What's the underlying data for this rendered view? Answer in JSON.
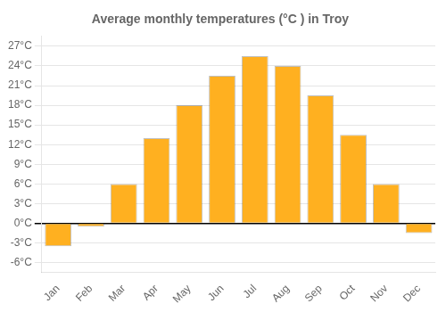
{
  "chart_data": {
    "type": "bar",
    "title": "Average monthly temperatures (°C ) in Troy",
    "categories": [
      "Jan",
      "Feb",
      "Mar",
      "Apr",
      "May",
      "Jun",
      "Jul",
      "Aug",
      "Sep",
      "Oct",
      "Nov",
      "Dec"
    ],
    "values": [
      -3.5,
      -0.5,
      6.0,
      13.0,
      18.0,
      22.5,
      25.5,
      24.0,
      19.5,
      13.5,
      6.0,
      -1.5
    ],
    "color": "#FFB020",
    "ylim": [
      -7.5,
      28.5
    ],
    "yticks": [
      {
        "value": -6,
        "label": "-6°C"
      },
      {
        "value": -3,
        "label": "-3°C"
      },
      {
        "value": 0,
        "label": "0°C"
      },
      {
        "value": 3,
        "label": "3°C"
      },
      {
        "value": 6,
        "label": "6°C"
      },
      {
        "value": 9,
        "label": "9°C"
      },
      {
        "value": 12,
        "label": "12°C"
      },
      {
        "value": 15,
        "label": "15°C"
      },
      {
        "value": 18,
        "label": "18°C"
      },
      {
        "value": 21,
        "label": "21°C"
      },
      {
        "value": 24,
        "label": "24°C"
      },
      {
        "value": 27,
        "label": "27°C"
      }
    ],
    "grid": true
  }
}
